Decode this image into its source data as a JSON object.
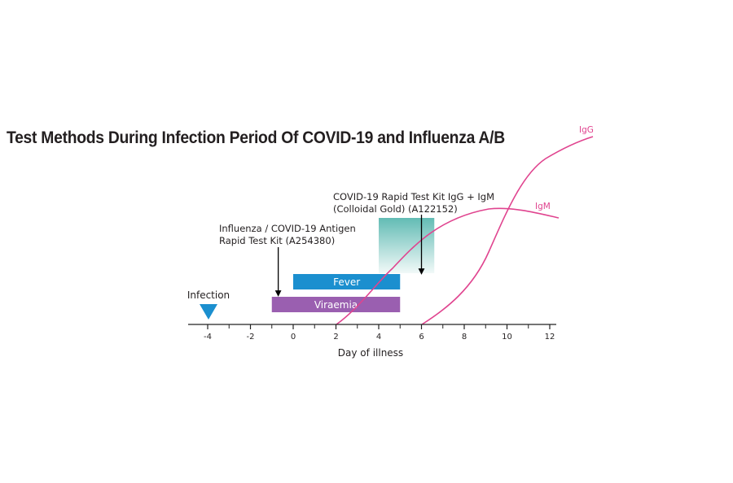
{
  "title": "Test Methods During Infection Period Of COVID-19 and Influenza A/B",
  "axis": {
    "xlabel": "Day of illness",
    "ticks": [
      -4,
      -2,
      0,
      2,
      4,
      6,
      8,
      10,
      12
    ],
    "minor_ticks": [
      -3,
      -1,
      1,
      3,
      5,
      7,
      9,
      11
    ],
    "range": [
      -4,
      12
    ]
  },
  "infection": {
    "label": "Infection",
    "day": -4,
    "marker": "triangle-down",
    "color": "#1b8fcf"
  },
  "bars": [
    {
      "label": "Fever",
      "start": 0,
      "end": 5,
      "color": "#1b8fcf"
    },
    {
      "label": "Viraemia",
      "start": -1,
      "end": 5,
      "color": "#9a5fb0"
    }
  ],
  "tests": [
    {
      "lines": [
        "Influenza / COVID-19 Antigen",
        "Rapid Test Kit (A254380)"
      ],
      "day": -0.7
    },
    {
      "lines": [
        "COVID-19 Rapid Test Kit IgG + IgM",
        "(Colloidal Gold) (A122152)"
      ],
      "day": 6
    }
  ],
  "window": {
    "start": 4,
    "end": 6.6,
    "color": "#5ab8b0"
  },
  "curves": [
    {
      "name": "IgM",
      "color": "#e0448f"
    },
    {
      "name": "IgG",
      "color": "#e0448f"
    }
  ]
}
